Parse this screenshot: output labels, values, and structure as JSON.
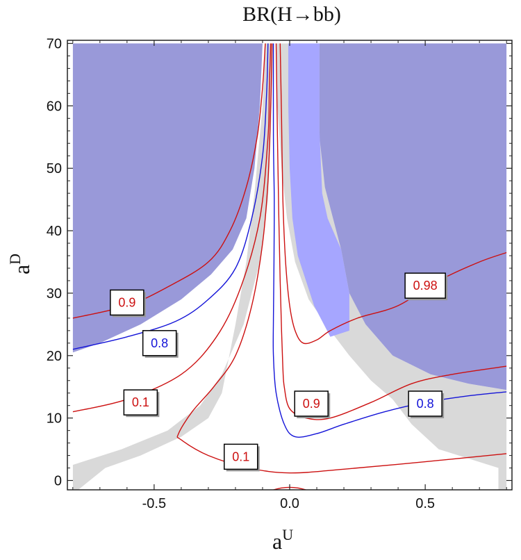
{
  "chart_data": {
    "type": "contour",
    "title": "BR(H→bb)",
    "xlabel": "a",
    "xlabel_sup": "U",
    "ylabel": "a",
    "ylabel_sup": "D",
    "xlim": [
      -0.82,
      0.82
    ],
    "ylim": [
      -1.5,
      70.5
    ],
    "plot_xlim": [
      -0.8,
      0.8
    ],
    "plot_ylim": [
      -1.5,
      70
    ],
    "xticks": [
      -0.5,
      0.0,
      0.5
    ],
    "xtick_labels": [
      "-0.5",
      "0.0",
      "0.5"
    ],
    "yticks": [
      0,
      10,
      20,
      30,
      40,
      50,
      60,
      70
    ],
    "ytick_labels": [
      "0",
      "10",
      "20",
      "30",
      "40",
      "50",
      "60",
      "70"
    ],
    "colors": {
      "excluded_blue": "#9999d9",
      "light_blue": "#a6a6ff",
      "gray": "#d9d9d9",
      "red": "#cc1010",
      "blue": "#1414d8",
      "frame": "#222222"
    },
    "regions": [
      {
        "name": "gray-allowed-band",
        "fill": "gray",
        "points": [
          [
            -0.8,
            2.5
          ],
          [
            -0.62,
            5
          ],
          [
            -0.45,
            8
          ],
          [
            -0.33,
            12
          ],
          [
            -0.25,
            17
          ],
          [
            -0.17,
            25
          ],
          [
            -0.11,
            35
          ],
          [
            -0.08,
            45
          ],
          [
            -0.07,
            55
          ],
          [
            -0.06,
            70
          ],
          [
            0.23,
            70
          ],
          [
            0.23,
            38
          ],
          [
            0.22,
            33
          ],
          [
            0.28,
            25
          ],
          [
            0.38,
            20
          ],
          [
            0.52,
            17
          ],
          [
            0.66,
            15.5
          ],
          [
            0.8,
            14.5
          ],
          [
            0.8,
            -1.5
          ],
          [
            0.77,
            -1.5
          ],
          [
            0.77,
            2
          ],
          [
            0.55,
            5
          ],
          [
            0.45,
            9
          ],
          [
            0.38,
            13
          ],
          [
            0.3,
            16
          ],
          [
            0.22,
            20
          ],
          [
            0.15,
            24
          ],
          [
            0.07,
            29
          ],
          [
            0.02,
            35
          ],
          [
            -0.01,
            42
          ],
          [
            -0.03,
            50
          ],
          [
            -0.045,
            60
          ],
          [
            -0.05,
            70
          ],
          [
            -0.09,
            70
          ],
          [
            -0.1,
            60
          ],
          [
            -0.13,
            46
          ],
          [
            -0.16,
            35
          ],
          [
            -0.2,
            25
          ],
          [
            -0.25,
            14
          ],
          [
            -0.3,
            10
          ],
          [
            -0.4,
            7
          ],
          [
            -0.55,
            4
          ],
          [
            -0.68,
            2
          ],
          [
            -0.78,
            -1.5
          ],
          [
            -0.8,
            -1.5
          ]
        ]
      },
      {
        "name": "blue-excluded-left",
        "fill": "excluded_blue",
        "points": [
          [
            -0.8,
            70
          ],
          [
            -0.1,
            70
          ],
          [
            -0.11,
            60
          ],
          [
            -0.13,
            50
          ],
          [
            -0.16,
            42
          ],
          [
            -0.21,
            37
          ],
          [
            -0.29,
            33
          ],
          [
            -0.4,
            29
          ],
          [
            -0.55,
            25
          ],
          [
            -0.7,
            22
          ],
          [
            -0.8,
            20.5
          ]
        ]
      },
      {
        "name": "blue-excluded-right",
        "fill": "excluded_blue",
        "points": [
          [
            0.11,
            70
          ],
          [
            0.8,
            70
          ],
          [
            0.8,
            14.5
          ],
          [
            0.66,
            15.5
          ],
          [
            0.52,
            17
          ],
          [
            0.38,
            20
          ],
          [
            0.28,
            25
          ],
          [
            0.22,
            30
          ],
          [
            0.19,
            37
          ],
          [
            0.16,
            42
          ],
          [
            0.13,
            47
          ],
          [
            0.11,
            55
          ]
        ]
      },
      {
        "name": "light-blue-excluded-band",
        "fill": "light_blue",
        "points": [
          [
            -0.005,
            70
          ],
          [
            0.11,
            70
          ],
          [
            0.11,
            56
          ],
          [
            0.12,
            46
          ],
          [
            0.14,
            42
          ],
          [
            0.16,
            40
          ],
          [
            0.19,
            37
          ],
          [
            0.22,
            30
          ],
          [
            0.22,
            24
          ],
          [
            0.15,
            23
          ],
          [
            0.09,
            28
          ],
          [
            0.03,
            36
          ],
          [
            0.01,
            42
          ],
          [
            0.0,
            50
          ],
          [
            -0.005,
            60
          ]
        ]
      }
    ],
    "contours": [
      {
        "name": "contour-0.9-left",
        "color": "red",
        "label": "0.9",
        "label_at": [
          -0.6,
          28.5
        ],
        "points": [
          [
            -0.8,
            26
          ],
          [
            -0.6,
            28
          ],
          [
            -0.45,
            31
          ],
          [
            -0.3,
            35
          ],
          [
            -0.22,
            40
          ],
          [
            -0.16,
            47
          ],
          [
            -0.12,
            55
          ],
          [
            -0.1,
            63
          ],
          [
            -0.09,
            70
          ]
        ]
      },
      {
        "name": "contour-0.8-left",
        "color": "blue",
        "label": "0.8",
        "label_at": [
          -0.48,
          22
        ],
        "points": [
          [
            -0.8,
            21
          ],
          [
            -0.6,
            23
          ],
          [
            -0.42,
            25.5
          ],
          [
            -0.3,
            29
          ],
          [
            -0.2,
            34
          ],
          [
            -0.14,
            42
          ],
          [
            -0.1,
            52
          ],
          [
            -0.085,
            62
          ],
          [
            -0.08,
            70
          ]
        ]
      },
      {
        "name": "contour-0.1-left",
        "color": "red",
        "label": "0.1",
        "label_at": [
          -0.55,
          12.5
        ],
        "points": [
          [
            -0.8,
            11
          ],
          [
            -0.6,
            13
          ],
          [
            -0.4,
            17
          ],
          [
            -0.27,
            23
          ],
          [
            -0.18,
            31
          ],
          [
            -0.11,
            42
          ],
          [
            -0.08,
            55
          ],
          [
            -0.075,
            63
          ],
          [
            -0.07,
            70
          ]
        ]
      },
      {
        "name": "contour-0.1-bottom",
        "color": "red",
        "label": "0.1",
        "label_at": [
          -0.18,
          3.8
        ],
        "points": [
          [
            -0.065,
            70
          ],
          [
            -0.07,
            60
          ],
          [
            -0.08,
            48
          ],
          [
            -0.1,
            38
          ],
          [
            -0.14,
            28
          ],
          [
            -0.2,
            20
          ],
          [
            -0.28,
            15
          ],
          [
            -0.36,
            11
          ],
          [
            -0.41,
            7.5
          ],
          [
            -0.4,
            6.5
          ],
          [
            -0.3,
            4
          ],
          [
            -0.15,
            2
          ],
          [
            0.0,
            1.2
          ],
          [
            0.2,
            1.8
          ],
          [
            0.5,
            3
          ],
          [
            0.8,
            4.3
          ]
        ]
      },
      {
        "name": "contour-0.8-center",
        "color": "blue",
        "label": "0.8",
        "label_at": [
          0.5,
          12.3
        ],
        "points": [
          [
            -0.06,
            70
          ],
          [
            -0.06,
            55
          ],
          [
            -0.057,
            45
          ],
          [
            -0.058,
            35
          ],
          [
            -0.06,
            26
          ],
          [
            -0.06,
            20
          ],
          [
            -0.05,
            14
          ],
          [
            -0.02,
            9
          ],
          [
            0.02,
            7
          ],
          [
            0.1,
            7.5
          ],
          [
            0.2,
            9
          ],
          [
            0.35,
            11
          ],
          [
            0.5,
            12.5
          ],
          [
            0.65,
            13.5
          ],
          [
            0.8,
            14.2
          ]
        ]
      },
      {
        "name": "contour-0.9-center",
        "color": "red",
        "label": "0.9",
        "label_at": [
          0.08,
          12.3
        ],
        "points": [
          [
            -0.05,
            70
          ],
          [
            -0.045,
            55
          ],
          [
            -0.04,
            42
          ],
          [
            -0.035,
            32
          ],
          [
            -0.03,
            24
          ],
          [
            -0.025,
            18
          ],
          [
            -0.02,
            15
          ],
          [
            0.0,
            11.5
          ],
          [
            0.06,
            10
          ],
          [
            0.15,
            10
          ],
          [
            0.3,
            12.5
          ],
          [
            0.45,
            15.5
          ],
          [
            0.6,
            17
          ],
          [
            0.8,
            18.3
          ]
        ]
      },
      {
        "name": "contour-0.98",
        "color": "red",
        "label": "0.98",
        "label_at": [
          0.5,
          31.2
        ],
        "points": [
          [
            -0.035,
            70
          ],
          [
            -0.03,
            58
          ],
          [
            -0.025,
            45
          ],
          [
            -0.015,
            35
          ],
          [
            0.0,
            28
          ],
          [
            0.02,
            24
          ],
          [
            0.05,
            22
          ],
          [
            0.1,
            22.5
          ],
          [
            0.15,
            24
          ],
          [
            0.25,
            26
          ],
          [
            0.4,
            28
          ],
          [
            0.55,
            32
          ],
          [
            0.7,
            35
          ],
          [
            0.8,
            36.5
          ]
        ]
      },
      {
        "name": "contour-bottom-arc",
        "color": "red",
        "label": "",
        "points": [
          [
            -0.06,
            -1.5
          ],
          [
            -0.03,
            -1.2
          ],
          [
            0.0,
            -1.1
          ],
          [
            0.03,
            -1.2
          ],
          [
            0.06,
            -1.5
          ]
        ]
      }
    ]
  }
}
